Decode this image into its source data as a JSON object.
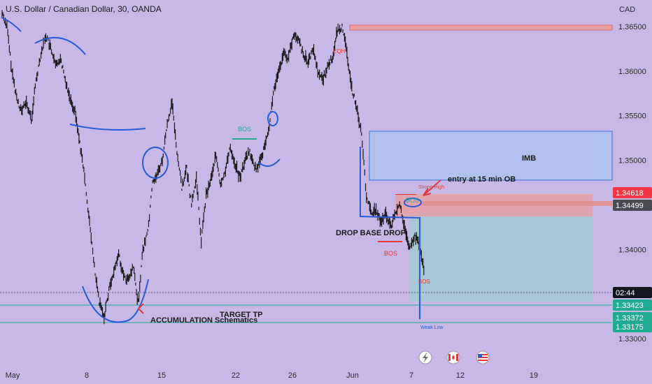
{
  "chart_data": {
    "type": "line",
    "title": "U.S. Dollar / Canadian Dollar, 30, OANDA",
    "currency": "CAD",
    "x_ticks": [
      "May",
      "8",
      "15",
      "22",
      "26",
      "Jun",
      "7",
      "12",
      "19"
    ],
    "y_ticks": [
      "1.36500",
      "1.36000",
      "1.35500",
      "1.35000",
      "1.34500",
      "1.34000",
      "1.33000"
    ],
    "ylim": [
      1.3288,
      1.3689
    ],
    "grid": false,
    "series": [
      {
        "values": [
          1.3665,
          1.365,
          1.36,
          1.357,
          1.3555,
          1.3565,
          1.3545,
          1.359,
          1.362,
          1.364,
          1.3625,
          1.3605,
          1.3615,
          1.359,
          1.357,
          1.3555,
          1.352,
          1.348,
          1.343,
          1.338,
          1.334,
          1.3325,
          1.3355,
          1.3375,
          1.3395,
          1.337,
          1.3365,
          1.338,
          1.334,
          1.34,
          1.342,
          1.3475,
          1.3485,
          1.35,
          1.354,
          1.3565,
          1.351,
          1.347,
          1.349,
          1.345,
          1.348,
          1.341,
          1.346,
          1.348,
          1.3505,
          1.347,
          1.349,
          1.3515,
          1.3495,
          1.348,
          1.35,
          1.351,
          1.349,
          1.3495,
          1.3515,
          1.354,
          1.358,
          1.36,
          1.362,
          1.3615,
          1.364,
          1.3635,
          1.362,
          1.361,
          1.3625,
          1.36,
          1.359,
          1.3605,
          1.3615,
          1.3645,
          1.365,
          1.362,
          1.358,
          1.356,
          1.353,
          1.346,
          1.344,
          1.3445,
          1.343,
          1.344,
          1.3425,
          1.344,
          1.345,
          1.342,
          1.34,
          1.3415,
          1.3405,
          1.337
        ]
      }
    ],
    "price_tags": [
      {
        "label": "1.34618",
        "color": "#f23645"
      },
      {
        "label": "1.34499",
        "color": "#4a4a52"
      },
      {
        "label": "02:44",
        "color": "#131722"
      },
      {
        "label": "1.33423",
        "color": "#22ab94"
      },
      {
        "label": "1.33372",
        "color": "#22ab94"
      },
      {
        "label": "1.33175",
        "color": "#22ab94"
      }
    ],
    "annotations": {
      "bos_1": "BOS",
      "bos_2": "BOS",
      "bos_3": "BOS",
      "bos_4": "BOS",
      "eqh": "EQH",
      "strong_high": "Strong High",
      "weak_low": "Weak Low",
      "imb": "IMB",
      "entry": "entry at 15 min OB",
      "drop_base_drop": "DROP BASE DROP",
      "target_tp": "TARGET TP",
      "accumulation": "ACCUMULATION Schematics"
    }
  },
  "colors": {
    "background": "#c8b8e8",
    "candle": "#1a1a1a",
    "drawing": "#2a5bd7",
    "red_zone": "#e8a0a0",
    "blue_zone": "#a8c4f0",
    "green_zone": "#8fd0c8",
    "green_line": "#22ab94",
    "arrow": "#e53935"
  },
  "icons": [
    "lightning-icon",
    "canada-flag-icon",
    "us-flag-icon"
  ]
}
